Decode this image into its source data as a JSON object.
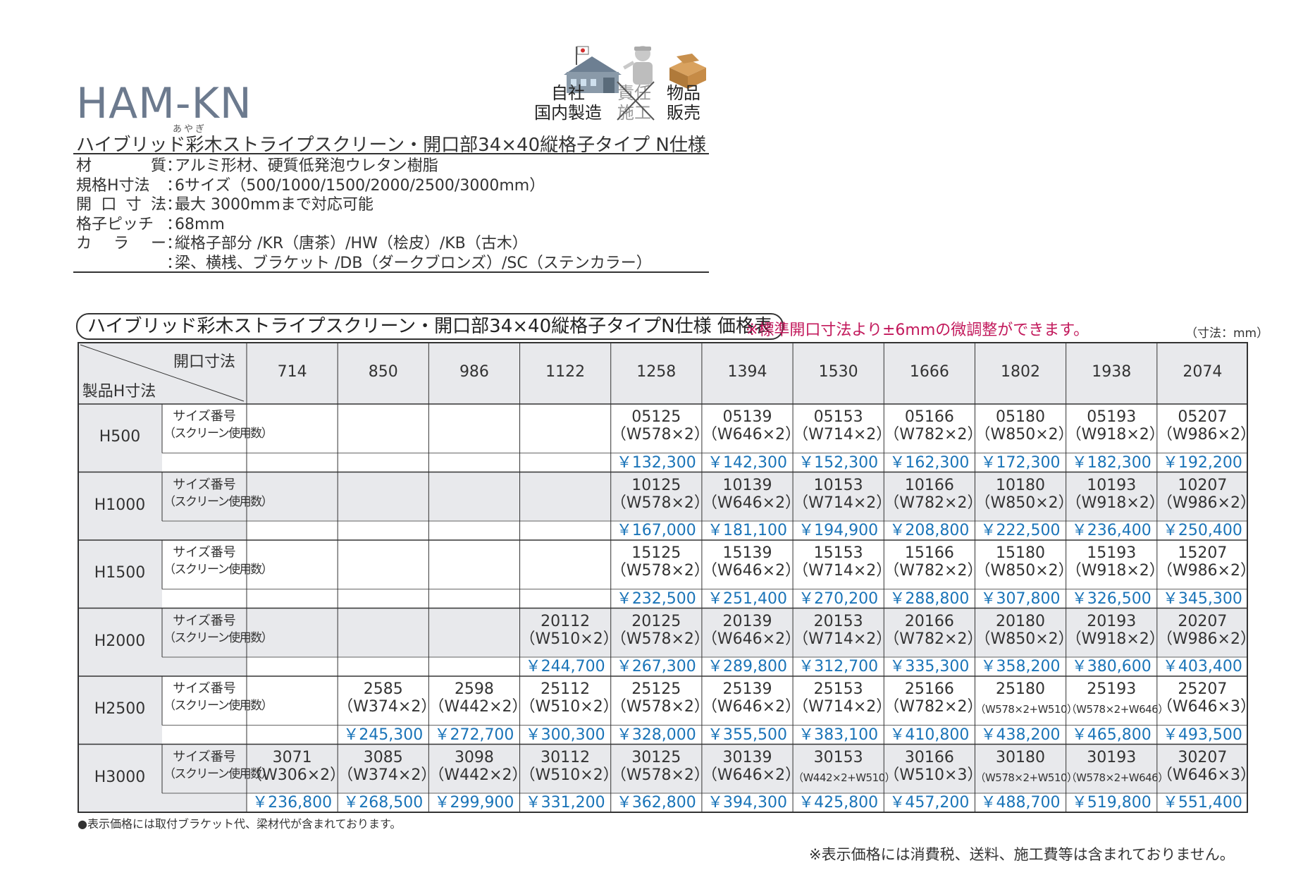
{
  "model": "HAM-KN",
  "ruby": "あやぎ",
  "subtitle": "ハイブリッド彩木ストライプスクリーン・開口部34×40縦格子タイプ N仕様",
  "specs": [
    {
      "label": "材質",
      "label_chars": [
        "材",
        "質"
      ],
      "value": "アルミ形材、硬質低発泡ウレタン樹脂"
    },
    {
      "label": "規格H寸法",
      "label_chars": [
        "規格H寸法"
      ],
      "value": "6サイズ（500/1000/1500/2000/2500/3000mm）"
    },
    {
      "label": "開口寸法",
      "label_chars": [
        "開",
        "口",
        "寸",
        "法"
      ],
      "value": "最大 3000mmまで対応可能"
    },
    {
      "label": "格子ピッチ",
      "label_chars": [
        "格子ピッチ"
      ],
      "value": "68mm"
    },
    {
      "label": "カラー",
      "label_chars": [
        "カ",
        "ラ",
        "ー"
      ],
      "value": "縦格子部分 /KR（唐茶）/HW（桧皮）/KB（古木）"
    },
    {
      "label": "",
      "label_chars": [],
      "value": "梁、横桟、ブラケット /DB（ダークブロンズ）/SC（ステンカラー）"
    }
  ],
  "icons": [
    {
      "name": "factory-icon",
      "label": "自社\n国内製造"
    },
    {
      "name": "installation-icon",
      "label": "責任\n施工",
      "crossed": true
    },
    {
      "name": "box-icon",
      "label": "物品\n販売"
    }
  ],
  "table": {
    "title": "ハイブリッド彩木ストライプスクリーン・開口部34×40縦格子タイプN仕様 価格表",
    "note": "※標準開口寸法より±6mmの微調整ができます。",
    "unit": "（寸法：mm）",
    "corner_top": "開口寸法",
    "corner_bottom": "製品H寸法",
    "widths": [
      "714",
      "850",
      "986",
      "1122",
      "1258",
      "1394",
      "1530",
      "1666",
      "1802",
      "1938",
      "2074"
    ],
    "sub_label": [
      "サイズ番号",
      "（スクリーン使用数）"
    ],
    "rows": [
      {
        "label": "H500",
        "cells": [
          null,
          null,
          null,
          null,
          {
            "code": "05125",
            "spec": "（W578×2）",
            "price": "￥132,300"
          },
          {
            "code": "05139",
            "spec": "（W646×2）",
            "price": "￥142,300"
          },
          {
            "code": "05153",
            "spec": "（W714×2）",
            "price": "￥152,300"
          },
          {
            "code": "05166",
            "spec": "（W782×2）",
            "price": "￥162,300"
          },
          {
            "code": "05180",
            "spec": "（W850×2）",
            "price": "￥172,300"
          },
          {
            "code": "05193",
            "spec": "（W918×2）",
            "price": "￥182,300"
          },
          {
            "code": "05207",
            "spec": "（W986×2）",
            "price": "￥192,200"
          }
        ]
      },
      {
        "label": "H1000",
        "cells": [
          null,
          null,
          null,
          null,
          {
            "code": "10125",
            "spec": "（W578×2）",
            "price": "￥167,000"
          },
          {
            "code": "10139",
            "spec": "（W646×2）",
            "price": "￥181,100"
          },
          {
            "code": "10153",
            "spec": "（W714×2）",
            "price": "￥194,900"
          },
          {
            "code": "10166",
            "spec": "（W782×2）",
            "price": "￥208,800"
          },
          {
            "code": "10180",
            "spec": "（W850×2）",
            "price": "￥222,500"
          },
          {
            "code": "10193",
            "spec": "（W918×2）",
            "price": "￥236,400"
          },
          {
            "code": "10207",
            "spec": "（W986×2）",
            "price": "￥250,400"
          }
        ]
      },
      {
        "label": "H1500",
        "cells": [
          null,
          null,
          null,
          null,
          {
            "code": "15125",
            "spec": "（W578×2）",
            "price": "￥232,500"
          },
          {
            "code": "15139",
            "spec": "（W646×2）",
            "price": "￥251,400"
          },
          {
            "code": "15153",
            "spec": "（W714×2）",
            "price": "￥270,200"
          },
          {
            "code": "15166",
            "spec": "（W782×2）",
            "price": "￥288,800"
          },
          {
            "code": "15180",
            "spec": "（W850×2）",
            "price": "￥307,800"
          },
          {
            "code": "15193",
            "spec": "（W918×2）",
            "price": "￥326,500"
          },
          {
            "code": "15207",
            "spec": "（W986×2）",
            "price": "￥345,300"
          }
        ]
      },
      {
        "label": "H2000",
        "cells": [
          null,
          null,
          null,
          {
            "code": "20112",
            "spec": "（W510×2）",
            "price": "￥244,700"
          },
          {
            "code": "20125",
            "spec": "（W578×2）",
            "price": "￥267,300"
          },
          {
            "code": "20139",
            "spec": "（W646×2）",
            "price": "￥289,800"
          },
          {
            "code": "20153",
            "spec": "（W714×2）",
            "price": "￥312,700"
          },
          {
            "code": "20166",
            "spec": "（W782×2）",
            "price": "￥335,300"
          },
          {
            "code": "20180",
            "spec": "（W850×2）",
            "price": "￥358,200"
          },
          {
            "code": "20193",
            "spec": "（W918×2）",
            "price": "￥380,600"
          },
          {
            "code": "20207",
            "spec": "（W986×2）",
            "price": "￥403,400"
          }
        ]
      },
      {
        "label": "H2500",
        "cells": [
          null,
          {
            "code": "2585",
            "spec": "（W374×2）",
            "price": "￥245,300"
          },
          {
            "code": "2598",
            "spec": "（W442×2）",
            "price": "￥272,700"
          },
          {
            "code": "25112",
            "spec": "（W510×2）",
            "price": "￥300,300"
          },
          {
            "code": "25125",
            "spec": "（W578×2）",
            "price": "￥328,000"
          },
          {
            "code": "25139",
            "spec": "（W646×2）",
            "price": "￥355,500"
          },
          {
            "code": "25153",
            "spec": "（W714×2）",
            "price": "￥383,100"
          },
          {
            "code": "25166",
            "spec": "（W782×2）",
            "price": "￥410,800"
          },
          {
            "code": "25180",
            "spec": "（W578×2+W510）",
            "small": true,
            "price": "￥438,200"
          },
          {
            "code": "25193",
            "spec": "（W578×2+W646）",
            "small": true,
            "price": "￥465,800"
          },
          {
            "code": "25207",
            "spec": "（W646×3）",
            "price": "￥493,500"
          }
        ]
      },
      {
        "label": "H3000",
        "cells": [
          {
            "code": "3071",
            "spec": "（W306×2）",
            "price": "￥236,800"
          },
          {
            "code": "3085",
            "spec": "（W374×2）",
            "price": "￥268,500"
          },
          {
            "code": "3098",
            "spec": "（W442×2）",
            "price": "￥299,900"
          },
          {
            "code": "30112",
            "spec": "（W510×2）",
            "price": "￥331,200"
          },
          {
            "code": "30125",
            "spec": "（W578×2）",
            "price": "￥362,800"
          },
          {
            "code": "30139",
            "spec": "（W646×2）",
            "price": "￥394,300"
          },
          {
            "code": "30153",
            "spec": "（W442×2+W510）",
            "small": true,
            "price": "￥425,800"
          },
          {
            "code": "30166",
            "spec": "（W510×3）",
            "price": "￥457,200"
          },
          {
            "code": "30180",
            "spec": "（W578×2+W510）",
            "small": true,
            "price": "￥488,700"
          },
          {
            "code": "30193",
            "spec": "（W578×2+W646）",
            "small": true,
            "price": "￥519,800"
          },
          {
            "code": "30207",
            "spec": "（W646×3）",
            "price": "￥551,400"
          }
        ]
      }
    ]
  },
  "footnote_left": "●表示価格には取付ブラケット代、梁材代が含まれております。",
  "footnote_right": "※表示価格には消費税、送料、施工費等は含まれておりません。",
  "colors": {
    "price": "#1a74b8",
    "note": "#c2185b",
    "label_bg": "#e8e9ec",
    "border": "#333333",
    "model": "#6c7a8e"
  }
}
